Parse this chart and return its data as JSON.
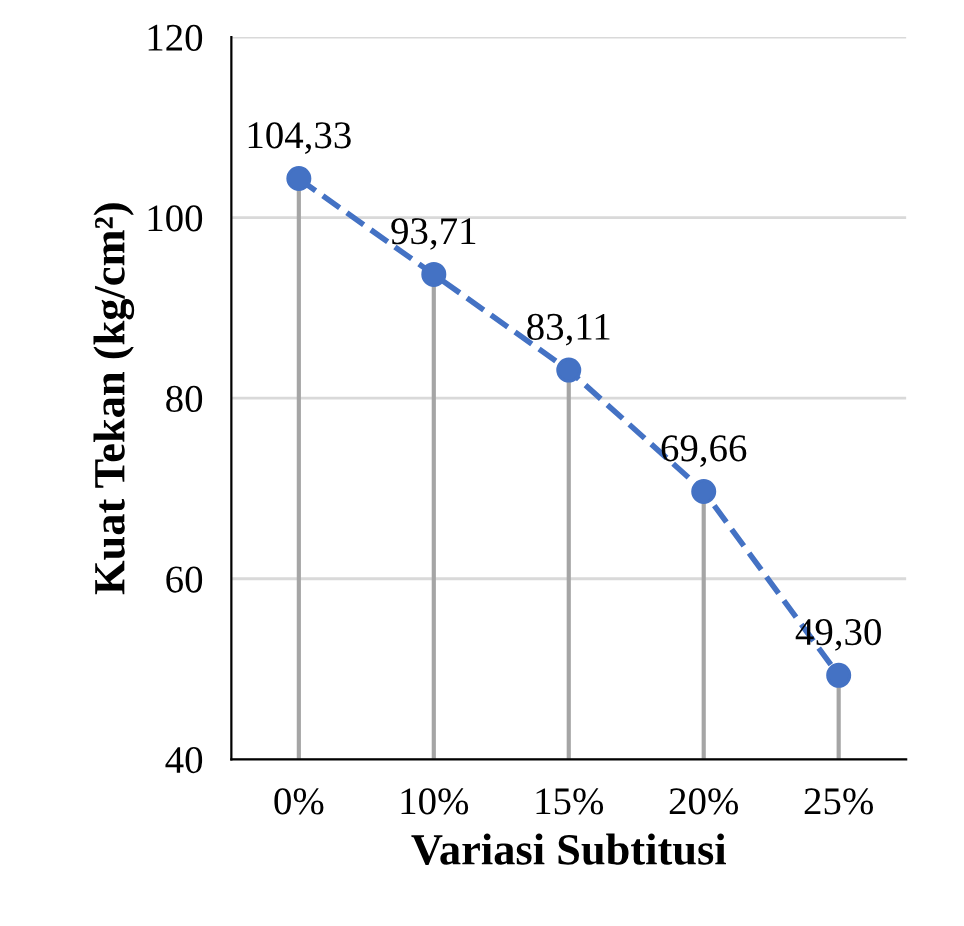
{
  "chart_data": {
    "type": "lollipop",
    "xlabel": "Variasi Subtitusi",
    "ylabel": "Kuat Tekan (kg/cm²)",
    "categories": [
      "0%",
      "10%",
      "15%",
      "20%",
      "25%"
    ],
    "series": [
      {
        "color": "#4472c4",
        "values": [
          104.33,
          93.71,
          83.11,
          69.66,
          49.3
        ],
        "value_labels": [
          "104,33",
          "93,71",
          "83,11",
          "69,66",
          "49,30"
        ],
        "marker": "circle"
      },
      {
        "type": "line",
        "color": "#4472c4",
        "values": [
          104.3,
          93.7,
          83.1,
          69.7,
          49.3
        ],
        "line_style": "dashed",
        "marker": "none"
      }
    ],
    "ylim": [
      40,
      120
    ],
    "yticks": [
      40,
      60,
      80,
      100,
      120
    ],
    "grid": "y",
    "legend": false
  }
}
